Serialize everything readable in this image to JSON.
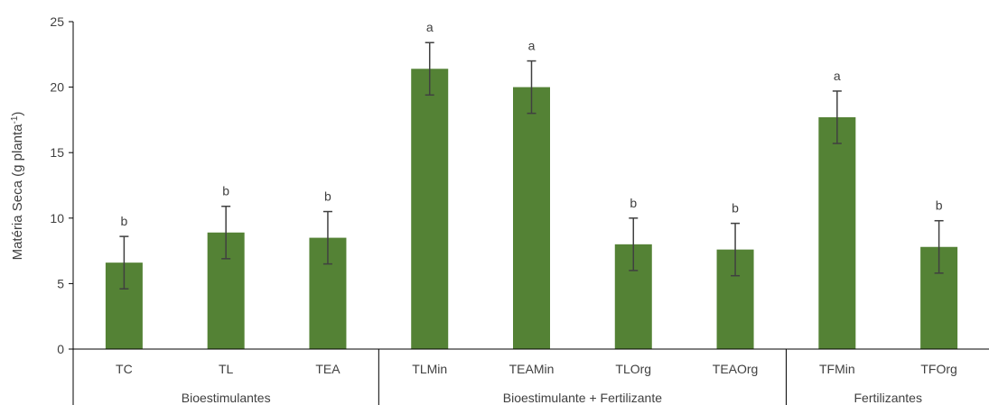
{
  "chart_data": {
    "type": "bar",
    "ylabel": "Matéria Seca (g  planta",
    "ylabel_sup": "-1",
    "ylabel_close": ")",
    "ylim": [
      0,
      25
    ],
    "yticks": [
      0,
      5,
      10,
      15,
      20,
      25
    ],
    "yticks_labels": [
      "0",
      "5",
      "10",
      "15",
      "20",
      "25"
    ],
    "grid": false,
    "categories": [
      "TC",
      "TL",
      "TEA",
      "TLMin",
      "TEAMin",
      "TLOrg",
      "TEAOrg",
      "TFMin",
      "TFOrg"
    ],
    "values": [
      6.6,
      8.9,
      8.5,
      21.4,
      20.0,
      8.0,
      7.6,
      17.7,
      7.8
    ],
    "errors": [
      2.0,
      2.0,
      2.0,
      2.0,
      2.0,
      2.0,
      2.0,
      2.0,
      2.0
    ],
    "significance": [
      "b",
      "b",
      "b",
      "a",
      "a",
      "b",
      "b",
      "a",
      "b"
    ],
    "groups": [
      {
        "label": "Bioestimulantes",
        "categories": [
          "TC",
          "TL",
          "TEA"
        ]
      },
      {
        "label": "Bioestimulante + Fertilizante",
        "categories": [
          "TLMin",
          "TEAMin",
          "TLOrg",
          "TEAOrg"
        ]
      },
      {
        "label": "Fertilizantes",
        "categories": [
          "TFMin",
          "TFOrg"
        ]
      }
    ],
    "colors": {
      "bar": "#548235",
      "axis": "#000000",
      "error": "#404040",
      "text": "#404040"
    }
  }
}
